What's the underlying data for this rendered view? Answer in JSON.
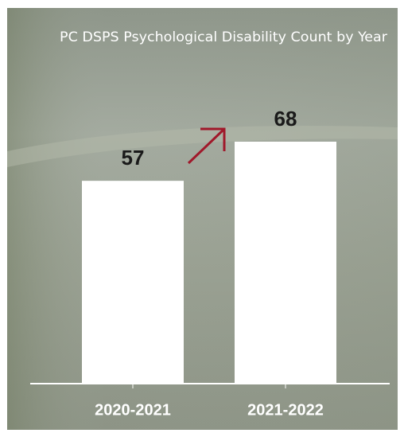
{
  "chart_data": {
    "type": "bar",
    "title": "PC DSPS Psychological Disability Count by Year",
    "categories": [
      "2020-2021",
      "2021-2022"
    ],
    "values": [
      57,
      68
    ],
    "color": "#ffffff"
  }
}
